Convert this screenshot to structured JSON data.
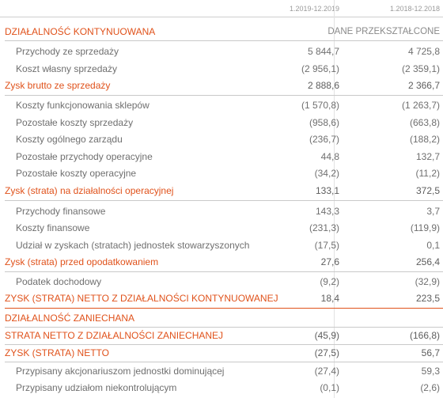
{
  "header": {
    "col1": "1.2019-12.2019",
    "col2": "1.2018-12.2018"
  },
  "rows": [
    {
      "label": "DZIAŁALNOŚĆ KONTYNUOWANA",
      "v1": "",
      "v2": "",
      "sub": "DANE PRZEKSZTAŁCONE"
    },
    {
      "label": "Przychody ze sprzedaży",
      "v1": "5 844,7",
      "v2": "4 725,8"
    },
    {
      "label": "Koszt własny sprzedaży",
      "v1": "(2 956,1)",
      "v2": "(2 359,1)"
    },
    {
      "label": "Zysk brutto ze sprzedaży",
      "v1": "2 888,6",
      "v2": "2 366,7"
    },
    {
      "label": "Koszty funkcjonowania sklepów",
      "v1": "(1 570,8)",
      "v2": "(1 263,7)"
    },
    {
      "label": "Pozostałe koszty sprzedaży",
      "v1": "(958,6)",
      "v2": "(663,8)"
    },
    {
      "label": "Koszty ogólnego zarządu",
      "v1": "(236,7)",
      "v2": "(188,2)"
    },
    {
      "label": "Pozostałe przychody operacyjne",
      "v1": "44,8",
      "v2": "132,7"
    },
    {
      "label": "Pozostałe koszty operacyjne",
      "v1": "(34,2)",
      "v2": "(11,2)"
    },
    {
      "label": "Zysk (strata) na działalności operacyjnej",
      "v1": "133,1",
      "v2": "372,5"
    },
    {
      "label": "Przychody finansowe",
      "v1": "143,3",
      "v2": "3,7"
    },
    {
      "label": "Koszty finansowe",
      "v1": "(231,3)",
      "v2": "(119,9)"
    },
    {
      "label": "Udział w zyskach (stratach) jednostek stowarzyszonych",
      "v1": "(17,5)",
      "v2": "0,1"
    },
    {
      "label": "Zysk (strata) przed opodatkowaniem",
      "v1": "27,6",
      "v2": "256,4"
    },
    {
      "label": "Podatek dochodowy",
      "v1": "(9,2)",
      "v2": "(32,9)"
    },
    {
      "label": "ZYSK (STRATA) NETTO Z DZIAŁALNOŚCI KONTYNUOWANEJ",
      "v1": "18,4",
      "v2": "223,5"
    },
    {
      "label": "DZIAŁALNOŚĆ ZANIECHANA",
      "v1": "",
      "v2": ""
    },
    {
      "label": "STRATA NETTO Z DZIAŁALNOŚCI ZANIECHANEJ",
      "v1": "(45,9)",
      "v2": "(166,8)"
    },
    {
      "label": "ZYSK (STRATA) NETTO",
      "v1": "(27,5)",
      "v2": "56,7"
    },
    {
      "label": "Przypisany akcjonariuszom jednostki dominującej",
      "v1": "(27,4)",
      "v2": "59,3"
    },
    {
      "label": "Przypisany udziałom niekontrolującym",
      "v1": "(0,1)",
      "v2": "(2,6)"
    }
  ]
}
